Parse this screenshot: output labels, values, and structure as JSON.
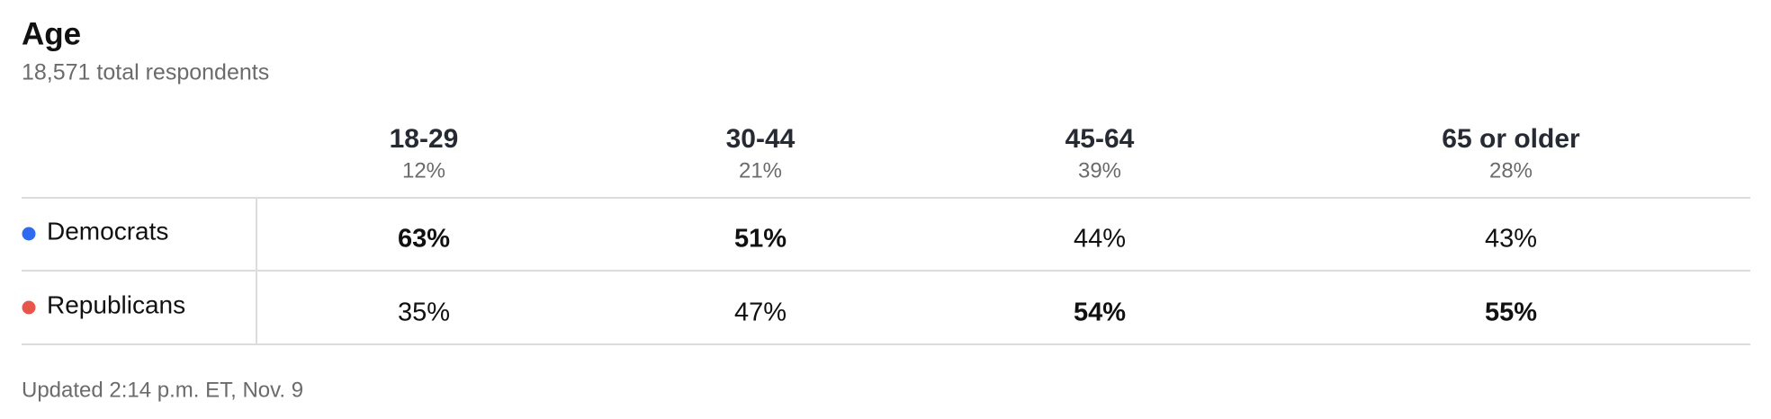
{
  "header": {
    "title": "Age",
    "subtitle": "18,571 total respondents"
  },
  "table": {
    "columns": [
      {
        "label": "18-29",
        "share": "12%"
      },
      {
        "label": "30-44",
        "share": "21%"
      },
      {
        "label": "45-64",
        "share": "39%"
      },
      {
        "label": "65 or older",
        "share": "28%"
      }
    ],
    "rows": [
      {
        "name": "Democrats",
        "color": "#2e6bf0",
        "values": [
          "63%",
          "51%",
          "44%",
          "43%"
        ],
        "leading": [
          true,
          true,
          false,
          false
        ]
      },
      {
        "name": "Republicans",
        "color": "#e8554a",
        "values": [
          "35%",
          "47%",
          "54%",
          "55%"
        ],
        "leading": [
          false,
          false,
          true,
          true
        ]
      }
    ]
  },
  "footer": "Updated 2:14 p.m. ET, Nov. 9"
}
